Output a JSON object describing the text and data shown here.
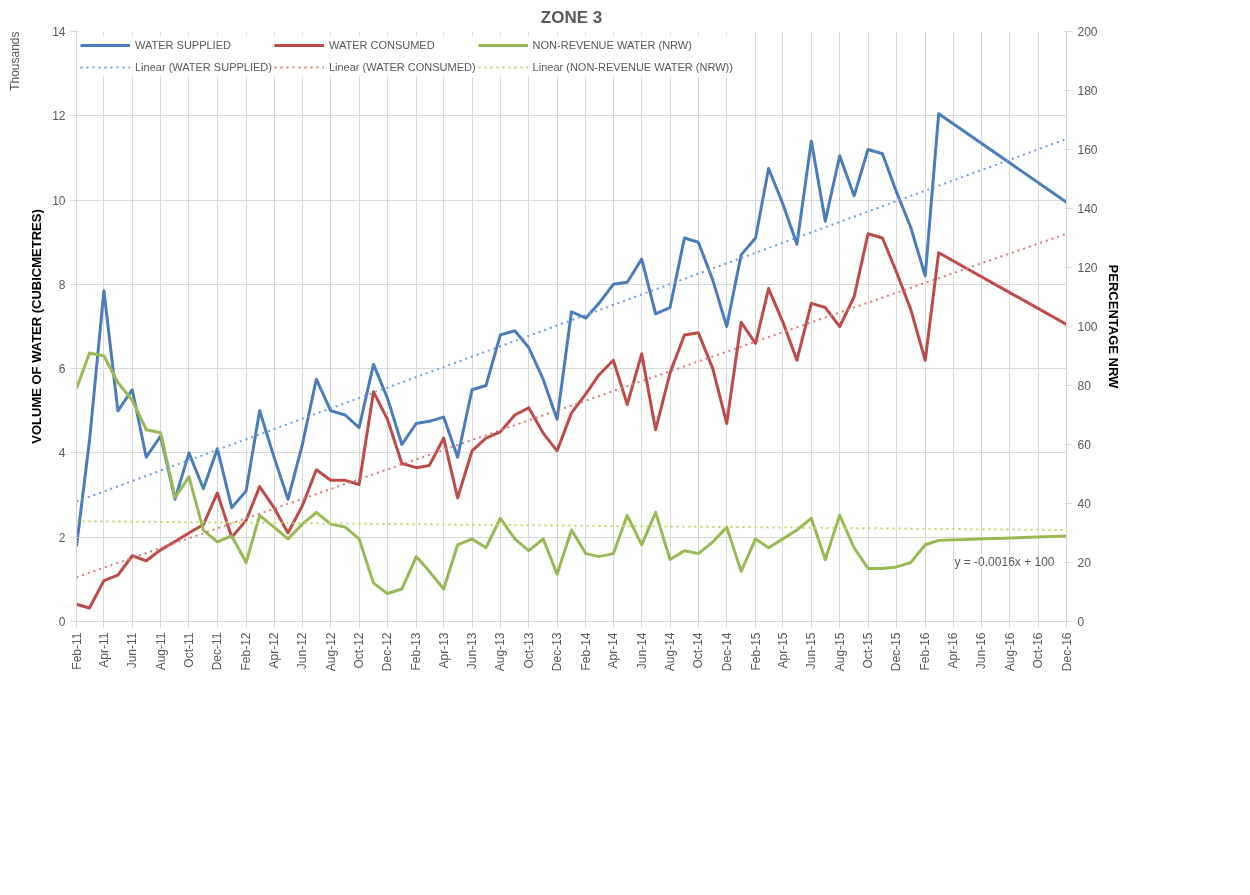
{
  "chart_data": {
    "type": "line",
    "title": "ZONE 3",
    "ylabel": "VOLUME OF WATER (CUBICMETRES)",
    "y2label": "PERCENTAGE NRW",
    "annotations": [
      "Thousands",
      "y = -0.0016x + 100"
    ],
    "x": [
      "2011-02",
      "2011-03",
      "2011-04",
      "2011-05",
      "2011-06",
      "2011-07",
      "2011-08",
      "2011-09",
      "2011-10",
      "2011-11",
      "2011-12",
      "2012-01",
      "2012-02",
      "2012-03",
      "2012-04",
      "2012-05",
      "2012-06",
      "2012-07",
      "2012-08",
      "2012-09",
      "2012-10",
      "2012-11",
      "2012-12",
      "2013-01",
      "2013-02",
      "2013-03",
      "2013-04",
      "2013-05",
      "2013-06",
      "2013-07",
      "2013-08",
      "2013-09",
      "2013-10",
      "2013-11",
      "2013-12",
      "2014-01",
      "2014-02",
      "2014-03",
      "2014-04",
      "2014-05",
      "2014-06",
      "2014-07",
      "2014-08",
      "2014-09",
      "2014-10",
      "2014-11",
      "2014-12",
      "2015-01",
      "2015-02",
      "2015-03",
      "2015-04",
      "2015-05",
      "2015-06",
      "2015-07",
      "2015-08",
      "2015-09",
      "2015-10",
      "2015-11",
      "2015-12",
      "2016-01",
      "2016-02",
      "2016-03",
      "2016-12"
    ],
    "series": [
      {
        "name": "WATER SUPPLIED",
        "color": "#4a7ebb",
        "values": [
          1.78,
          4.3,
          7.85,
          5.0,
          5.5,
          3.9,
          4.4,
          2.9,
          4.0,
          3.15,
          4.1,
          2.7,
          3.1,
          5.0,
          3.9,
          2.9,
          4.2,
          5.75,
          5.0,
          4.9,
          4.6,
          6.1,
          5.3,
          4.2,
          4.7,
          4.75,
          4.85,
          3.9,
          5.5,
          5.6,
          6.8,
          6.9,
          6.5,
          5.75,
          4.8,
          7.35,
          7.2,
          7.55,
          8.0,
          8.05,
          8.6,
          7.3,
          7.45,
          9.1,
          9.0,
          8.1,
          7.0,
          8.7,
          9.1,
          10.75,
          9.9,
          8.95,
          11.4,
          9.5,
          11.05,
          10.1,
          11.2,
          11.1,
          10.2,
          9.35,
          8.2,
          12.05,
          9.95
        ]
      },
      {
        "name": "WATER CONSUMED",
        "color": "#be4b48",
        "values": [
          0.41,
          0.32,
          0.97,
          1.1,
          1.56,
          1.44,
          1.7,
          1.9,
          2.1,
          2.3,
          3.05,
          2.0,
          2.4,
          3.2,
          2.7,
          2.1,
          2.75,
          3.6,
          3.35,
          3.35,
          3.25,
          5.45,
          4.8,
          3.75,
          3.65,
          3.7,
          4.35,
          2.93,
          4.05,
          4.35,
          4.5,
          4.9,
          5.07,
          4.47,
          4.05,
          4.95,
          5.4,
          5.85,
          6.2,
          5.15,
          6.35,
          4.55,
          5.9,
          6.8,
          6.85,
          6.0,
          4.7,
          7.1,
          6.6,
          7.9,
          7.1,
          6.2,
          7.55,
          7.45,
          7.0,
          7.7,
          9.2,
          9.1,
          8.3,
          7.4,
          6.2,
          8.75,
          7.05
        ]
      },
      {
        "name": "NON-REVENUE WATER (NRW)",
        "color": "#98b954",
        "axis": "y2",
        "values": [
          79,
          91,
          90,
          81,
          75,
          65,
          64,
          42,
          49,
          31,
          27,
          29,
          20,
          36,
          32,
          28,
          33,
          37,
          33,
          32,
          28,
          13,
          9.5,
          11,
          22,
          17,
          11,
          26,
          28,
          25,
          35,
          28,
          24,
          28,
          16,
          31,
          23,
          22,
          23,
          36,
          26,
          37,
          21,
          24,
          23,
          27,
          32,
          17,
          28,
          25,
          28,
          31,
          35,
          21,
          36,
          25,
          18,
          18,
          18.5,
          20,
          26,
          27.5,
          29
        ]
      },
      {
        "name": "Linear (WATER SUPPLIED)",
        "color": "#6fa0dc",
        "line_style": "dotted",
        "x": [
          "2011-02",
          "2016-12"
        ],
        "values": [
          2.85,
          11.45
        ]
      },
      {
        "name": "Linear (WATER CONSUMED)",
        "color": "#d97b78",
        "line_style": "dotted",
        "x": [
          "2011-02",
          "2016-12"
        ],
        "values": [
          1.05,
          9.2
        ]
      },
      {
        "name": "Linear (NON-REVENUE WATER (NRW))",
        "color": "#c5d66a",
        "line_style": "dotted",
        "axis": "y2",
        "x": [
          "2011-02",
          "2016-12"
        ],
        "values": [
          34,
          31
        ]
      }
    ],
    "xlim": [
      "2011-02",
      "2016-12"
    ],
    "xticks": [
      {
        "value": "2011-02",
        "label": "Feb-11"
      },
      {
        "value": "2011-04",
        "label": "Apr-11"
      },
      {
        "value": "2011-06",
        "label": "Jun-11"
      },
      {
        "value": "2011-08",
        "label": "Aug-11"
      },
      {
        "value": "2011-10",
        "label": "Oct-11"
      },
      {
        "value": "2011-12",
        "label": "Dec-11"
      },
      {
        "value": "2012-02",
        "label": "Feb-12"
      },
      {
        "value": "2012-04",
        "label": "Apr-12"
      },
      {
        "value": "2012-06",
        "label": "Jun-12"
      },
      {
        "value": "2012-08",
        "label": "Aug-12"
      },
      {
        "value": "2012-10",
        "label": "Oct-12"
      },
      {
        "value": "2012-12",
        "label": "Dec-12"
      },
      {
        "value": "2013-02",
        "label": "Feb-13"
      },
      {
        "value": "2013-04",
        "label": "Apr-13"
      },
      {
        "value": "2013-06",
        "label": "Jun-13"
      },
      {
        "value": "2013-08",
        "label": "Aug-13"
      },
      {
        "value": "2013-10",
        "label": "Oct-13"
      },
      {
        "value": "2013-12",
        "label": "Dec-13"
      },
      {
        "value": "2014-02",
        "label": "Feb-14"
      },
      {
        "value": "2014-04",
        "label": "Apr-14"
      },
      {
        "value": "2014-06",
        "label": "Jun-14"
      },
      {
        "value": "2014-08",
        "label": "Aug-14"
      },
      {
        "value": "2014-10",
        "label": "Oct-14"
      },
      {
        "value": "2014-12",
        "label": "Dec-14"
      },
      {
        "value": "2015-02",
        "label": "Feb-15"
      },
      {
        "value": "2015-04",
        "label": "Apr-15"
      },
      {
        "value": "2015-06",
        "label": "Jun-15"
      },
      {
        "value": "2015-08",
        "label": "Aug-15"
      },
      {
        "value": "2015-10",
        "label": "Oct-15"
      },
      {
        "value": "2015-12",
        "label": "Dec-15"
      },
      {
        "value": "2016-02",
        "label": "Feb-16"
      },
      {
        "value": "2016-04",
        "label": "Apr-16"
      },
      {
        "value": "2016-06",
        "label": "Jun-16"
      },
      {
        "value": "2016-08",
        "label": "Aug-16"
      },
      {
        "value": "2016-10",
        "label": "Oct-16"
      },
      {
        "value": "2016-12",
        "label": "Dec-16"
      }
    ],
    "ylim": [
      0,
      14
    ],
    "yticks": [
      0,
      2,
      4,
      6,
      8,
      10,
      12,
      14
    ],
    "y2lim": [
      0,
      200
    ],
    "y2ticks": [
      0,
      20,
      40,
      60,
      80,
      100,
      120,
      140,
      160,
      180,
      200
    ],
    "grid": true,
    "legend": "top left",
    "line_style": "solid",
    "marker": "none"
  }
}
